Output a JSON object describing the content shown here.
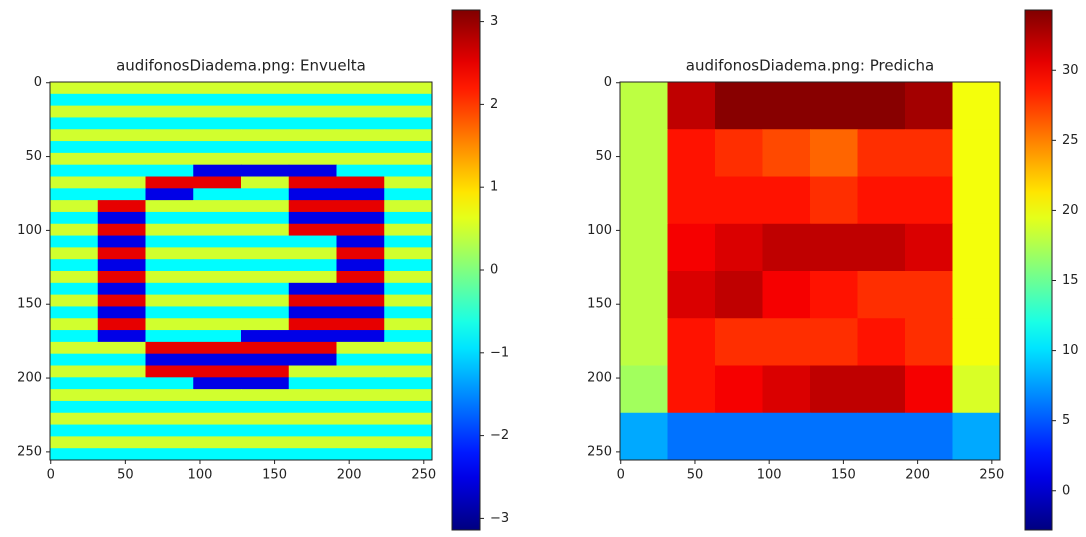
{
  "chart_data": [
    {
      "type": "heatmap",
      "title": "audifonosDiadema.png: Envuelta",
      "colormap": "jet",
      "xlim": [
        -0.5,
        255.5
      ],
      "ylim": [
        255.5,
        -0.5
      ],
      "xticks": [
        0,
        50,
        100,
        150,
        200,
        250
      ],
      "yticks": [
        0,
        50,
        100,
        150,
        200,
        250
      ],
      "clim": [
        -3.14,
        3.14
      ],
      "cticks": [
        {
          "value": -3,
          "label": "−3"
        },
        {
          "value": -2,
          "label": "−2"
        },
        {
          "value": -1,
          "label": "−1"
        },
        0,
        1,
        2,
        3
      ],
      "z": [
        [
          0.5,
          0.5,
          0.5,
          0.5,
          0.5,
          0.5,
          0.5,
          0.5
        ],
        [
          -0.8,
          -0.8,
          -0.8,
          -0.8,
          -0.8,
          -0.8,
          -0.8,
          -0.8
        ],
        [
          0.5,
          0.5,
          0.5,
          0.5,
          0.5,
          0.5,
          0.5,
          0.5
        ],
        [
          -0.8,
          -0.8,
          -0.8,
          -0.8,
          -0.8,
          -0.8,
          -0.8,
          -0.8
        ],
        [
          0.5,
          0.5,
          0.5,
          0.5,
          0.5,
          0.5,
          0.5,
          0.5
        ],
        [
          -0.8,
          -0.8,
          -0.8,
          -0.8,
          -0.8,
          -0.8,
          -0.8,
          -0.8
        ],
        [
          0.5,
          0.5,
          0.5,
          0.5,
          0.5,
          0.5,
          0.5,
          0.5
        ],
        [
          -0.8,
          -0.8,
          -0.8,
          -2.5,
          -2.5,
          -2.5,
          -0.8,
          -0.8
        ],
        [
          0.5,
          0.5,
          2.5,
          2.5,
          0.5,
          2.5,
          2.5,
          0.5
        ],
        [
          -0.8,
          -0.8,
          -2.5,
          -0.8,
          -0.8,
          -2.5,
          -2.5,
          -0.8
        ],
        [
          0.5,
          2.5,
          0.5,
          0.5,
          0.5,
          2.5,
          2.5,
          0.5
        ],
        [
          -0.8,
          -2.5,
          -0.8,
          -0.8,
          -0.8,
          -2.5,
          -2.5,
          -0.8
        ],
        [
          0.5,
          2.5,
          0.5,
          0.5,
          0.5,
          2.5,
          2.5,
          0.5
        ],
        [
          -0.8,
          -2.5,
          -0.8,
          -0.8,
          -0.8,
          -0.8,
          -2.5,
          -0.8
        ],
        [
          0.5,
          2.5,
          0.5,
          0.5,
          0.5,
          0.5,
          2.5,
          0.5
        ],
        [
          -0.8,
          -2.5,
          -0.8,
          -0.8,
          -0.8,
          -0.8,
          -2.5,
          -0.8
        ],
        [
          0.5,
          2.5,
          0.5,
          0.5,
          0.5,
          0.5,
          2.5,
          0.5
        ],
        [
          -0.8,
          -2.5,
          -0.8,
          -0.8,
          -0.8,
          -2.5,
          -2.5,
          -0.8
        ],
        [
          0.5,
          2.5,
          0.5,
          0.5,
          0.5,
          2.5,
          2.5,
          0.5
        ],
        [
          -0.8,
          -2.5,
          -0.8,
          -0.8,
          -0.8,
          -2.5,
          -2.5,
          -0.8
        ],
        [
          0.5,
          2.5,
          0.5,
          0.5,
          0.5,
          2.5,
          2.5,
          0.5
        ],
        [
          -0.8,
          -2.5,
          -0.8,
          -0.8,
          -2.5,
          -2.5,
          -2.5,
          -0.8
        ],
        [
          0.5,
          0.5,
          2.5,
          2.5,
          2.5,
          2.5,
          0.5,
          0.5
        ],
        [
          -0.8,
          -0.8,
          -2.5,
          -2.5,
          -2.5,
          -2.5,
          -0.8,
          -0.8
        ],
        [
          0.5,
          0.5,
          2.5,
          2.5,
          2.5,
          0.5,
          0.5,
          0.5
        ],
        [
          -0.8,
          -0.8,
          -0.8,
          -2.5,
          -2.5,
          -0.8,
          -0.8,
          -0.8
        ],
        [
          0.5,
          0.5,
          0.5,
          0.5,
          0.5,
          0.5,
          0.5,
          0.5
        ],
        [
          -0.8,
          -0.8,
          -0.8,
          -0.8,
          -0.8,
          -0.8,
          -0.8,
          -0.8
        ],
        [
          0.5,
          0.5,
          0.5,
          0.5,
          0.5,
          0.5,
          0.5,
          0.5
        ],
        [
          -0.8,
          -0.8,
          -0.8,
          -0.8,
          -0.8,
          -0.8,
          -0.8,
          -0.8
        ],
        [
          0.5,
          0.5,
          0.5,
          0.5,
          0.5,
          0.5,
          0.5,
          0.5
        ],
        [
          -0.8,
          -0.8,
          -0.8,
          -0.8,
          -0.8,
          -0.8,
          -0.8,
          -0.8
        ]
      ]
    },
    {
      "type": "heatmap",
      "title": "audifonosDiadema.png: Predicha",
      "colormap": "jet",
      "xlim": [
        -0.5,
        255.5
      ],
      "ylim": [
        255.5,
        -0.5
      ],
      "xticks": [
        0,
        50,
        100,
        150,
        200,
        250
      ],
      "yticks": [
        0,
        50,
        100,
        150,
        200,
        250
      ],
      "clim": [
        -2.8,
        34.3
      ],
      "cticks": [
        0,
        5,
        10,
        15,
        20,
        25,
        30
      ],
      "z": [
        [
          18,
          32,
          34,
          34,
          34,
          34,
          33,
          20
        ],
        [
          18,
          29,
          28,
          27,
          26,
          28,
          28,
          20
        ],
        [
          18,
          29,
          29,
          29,
          28,
          29,
          29,
          20
        ],
        [
          18,
          30,
          31,
          32,
          32,
          32,
          31,
          20
        ],
        [
          18,
          31,
          32,
          30,
          29,
          28,
          28,
          20
        ],
        [
          18,
          29,
          28,
          28,
          28,
          29,
          28,
          20
        ],
        [
          17,
          29,
          30,
          31,
          32,
          32,
          30,
          19
        ],
        [
          8,
          6,
          6,
          6,
          6,
          6,
          6,
          8
        ]
      ]
    }
  ]
}
